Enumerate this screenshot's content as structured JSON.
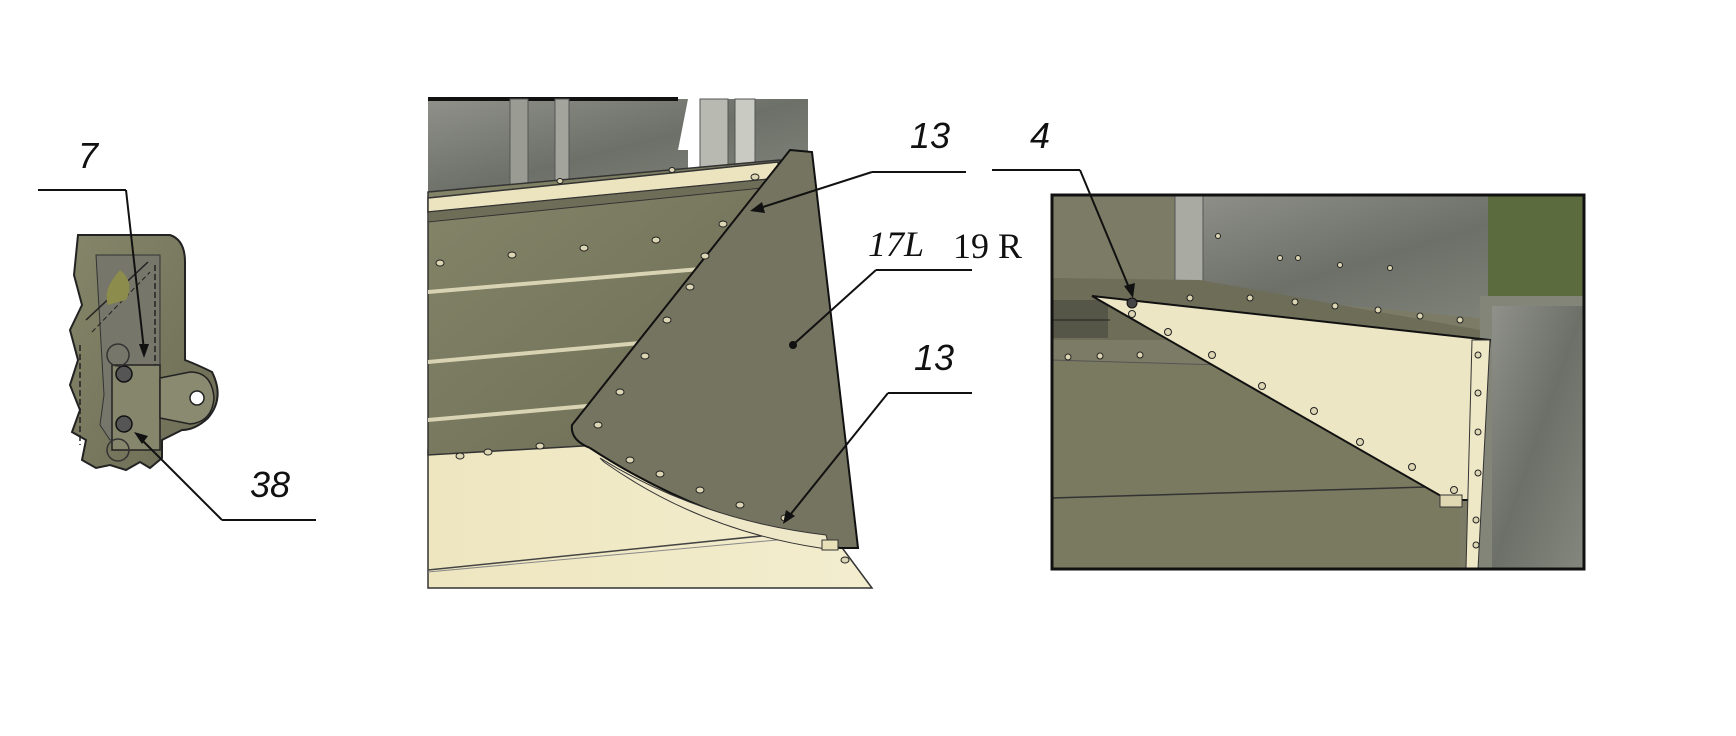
{
  "colors": {
    "panel_olive": "#7a7a62",
    "panel_dark": "#5f5f4c",
    "cream": "#efe8c2",
    "edge": "#1a1a1a",
    "steel": "#9a9a8e"
  },
  "views": {
    "left": {
      "callouts": {
        "top": "7",
        "bottom": "38"
      }
    },
    "center": {
      "callouts": {
        "top": "13",
        "part_left": "17L",
        "part_right": "19 R",
        "bottom": "13"
      }
    },
    "right": {
      "callouts": {
        "top": "4"
      }
    }
  }
}
